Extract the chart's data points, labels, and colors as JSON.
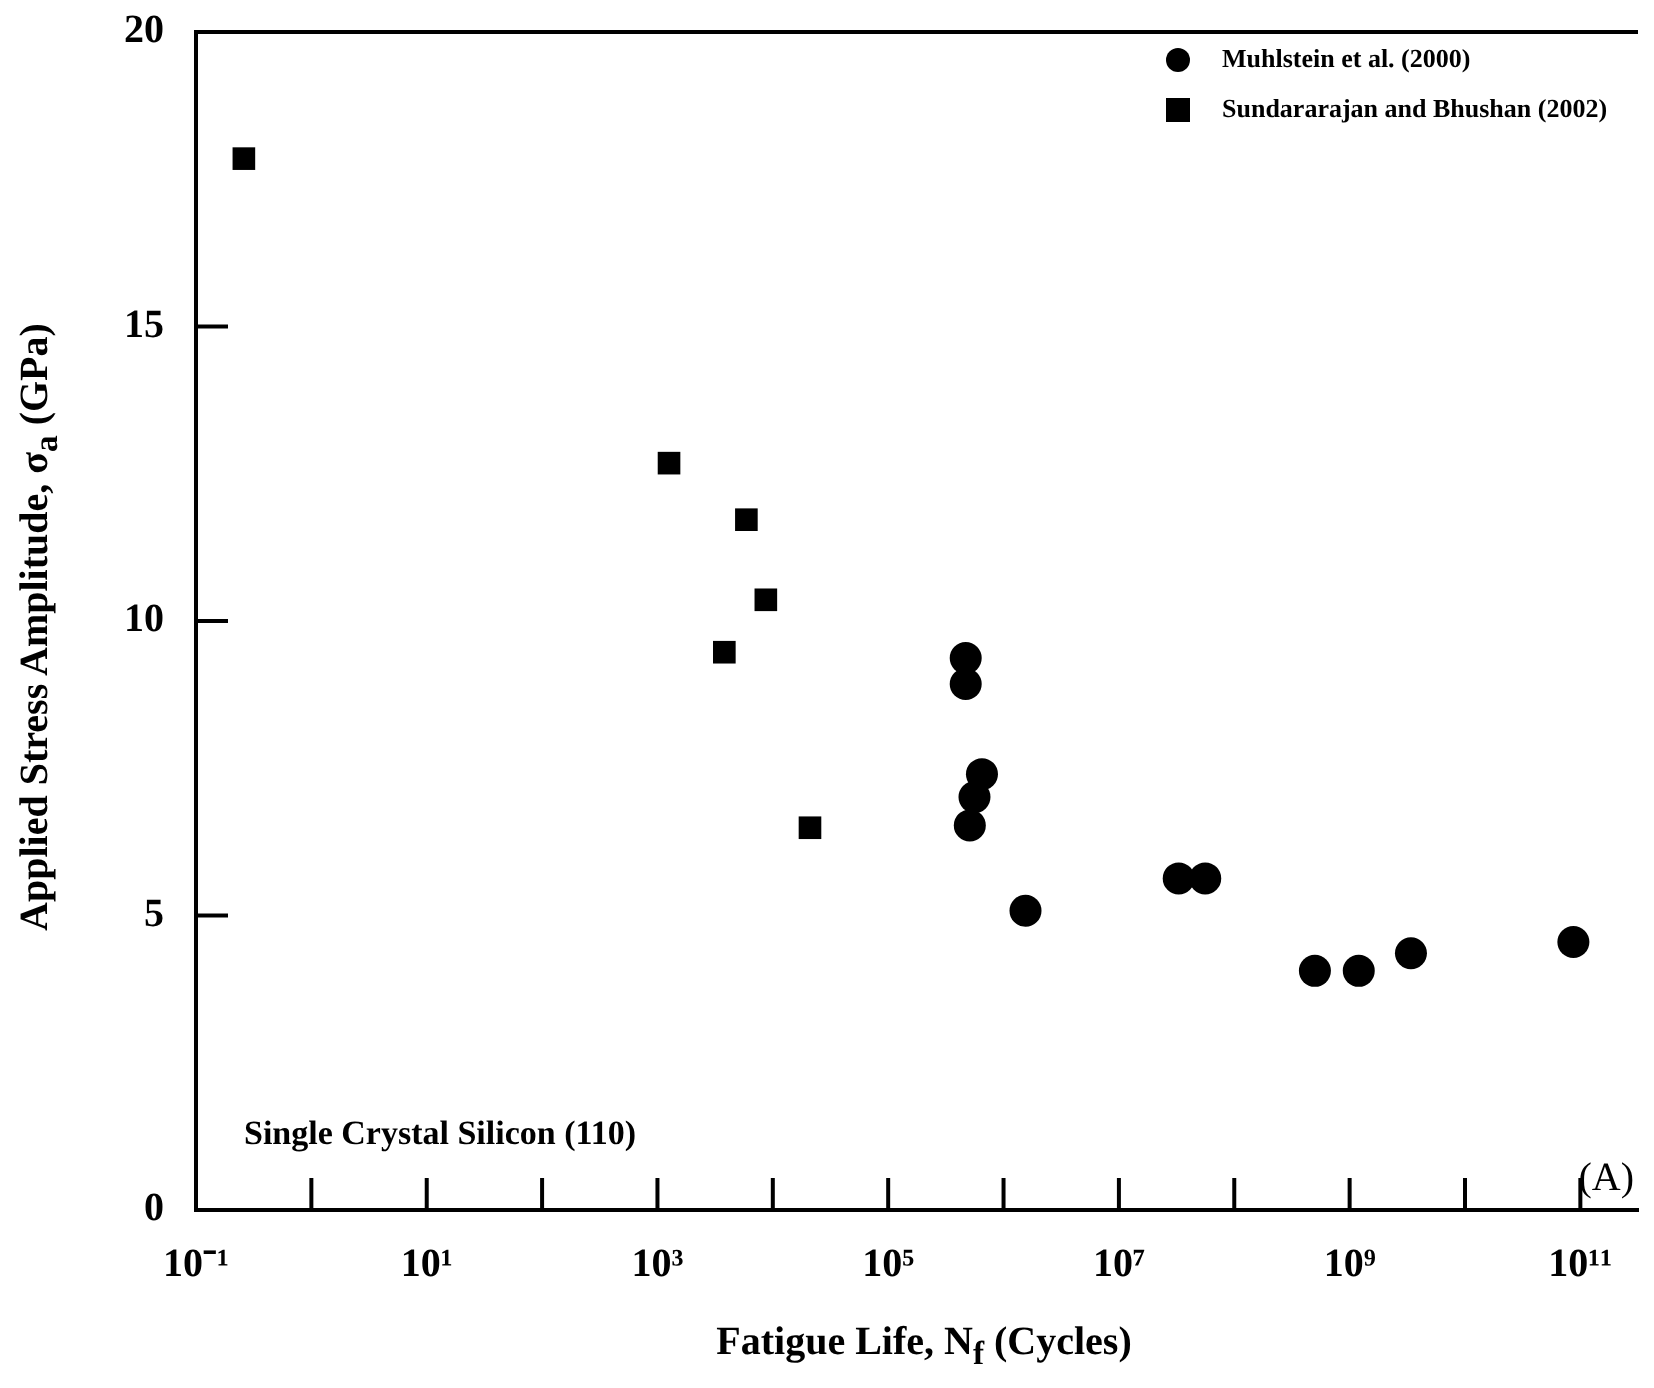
{
  "chart_data": {
    "type": "scatter",
    "xlabel": "Fatigue Life, N$_{f}$ (Cycles)",
    "ylabel": "Applied Stress Amplitude, σ$_{a}$ (GPa)",
    "log": "x",
    "xlim": [
      0.1,
      316000000000
    ],
    "ylim": [
      0,
      20
    ],
    "xticks": [
      {
        "value": 0.1,
        "label": "10⁻¹"
      },
      {
        "value": 1,
        "label": null
      },
      {
        "value": 10,
        "label": "10¹"
      },
      {
        "value": 100,
        "label": null
      },
      {
        "value": 1000,
        "label": "10³"
      },
      {
        "value": 10000,
        "label": null
      },
      {
        "value": 100000,
        "label": "10⁵"
      },
      {
        "value": 1000000,
        "label": null
      },
      {
        "value": 10000000,
        "label": "10⁷"
      },
      {
        "value": 100000000,
        "label": null
      },
      {
        "value": 1000000000,
        "label": "10⁹"
      },
      {
        "value": 10000000000,
        "label": null
      },
      {
        "value": 100000000000,
        "label": "10¹¹"
      }
    ],
    "yticks": [
      0,
      5,
      10,
      15,
      20
    ],
    "grid": false,
    "legend": "top right",
    "series": [
      {
        "name": "Muhlstein et al. (2000)",
        "color": "#000000",
        "marker": "circle",
        "x": [
          470000,
          470000,
          650000,
          560000,
          510000,
          1550000,
          33000000,
          56000000,
          500000000,
          1200000000,
          3400000000,
          87000000000
        ],
        "values": [
          9.37,
          8.93,
          7.4,
          7.01,
          6.53,
          5.08,
          5.63,
          5.63,
          4.06,
          4.06,
          4.36,
          4.55
        ]
      },
      {
        "name": "Sundararajan and Bhushan (2002)",
        "color": "#000000",
        "marker": "square",
        "x": [
          0.26,
          1260,
          5900,
          8700,
          3800,
          21000
        ],
        "values": [
          17.85,
          12.68,
          11.72,
          10.36,
          9.47,
          6.49
        ]
      }
    ],
    "annotations": [
      "Single Crystal Silicon (110)",
      "(A)"
    ]
  }
}
